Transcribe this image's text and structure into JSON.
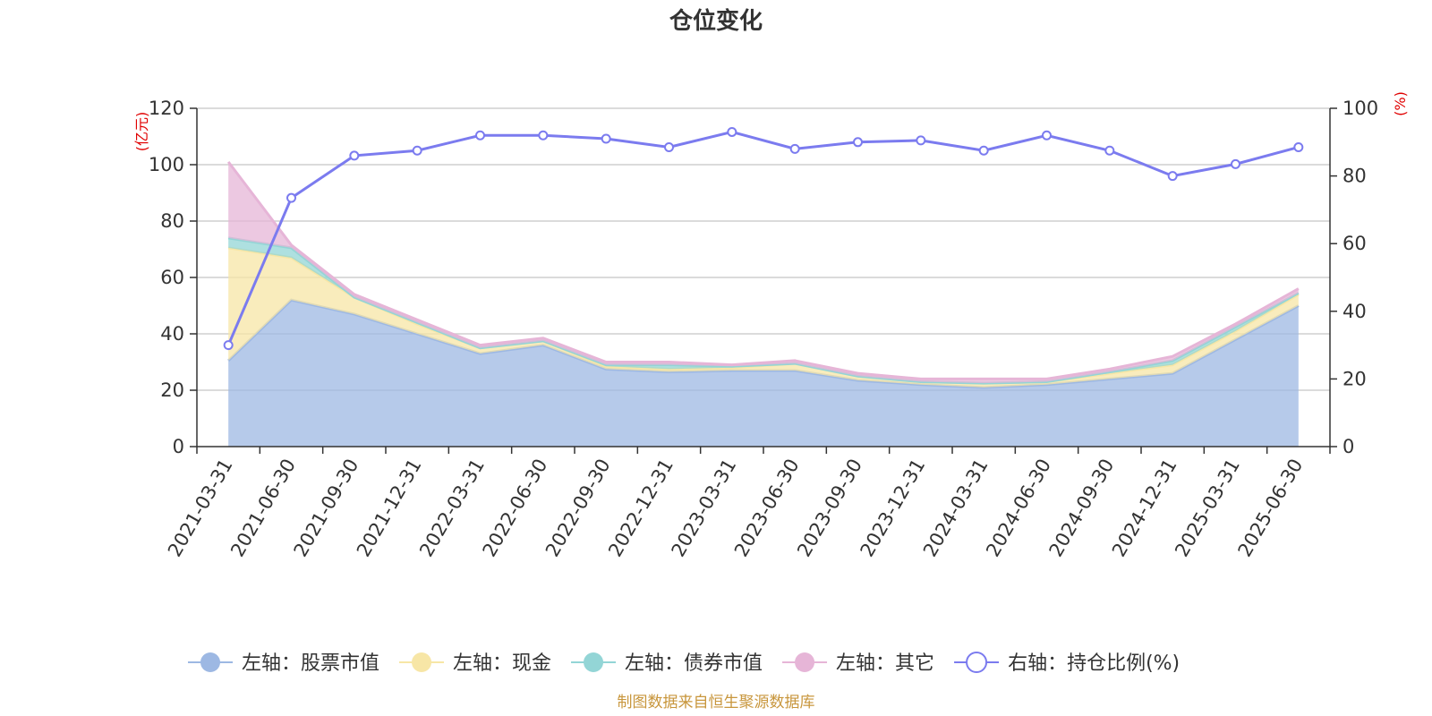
{
  "title": "仓位变化",
  "source": "制图数据来自恒生聚源数据库",
  "chart_data": {
    "type": "area",
    "title": "仓位变化",
    "x": [
      "2021-03-31",
      "2021-06-30",
      "2021-09-30",
      "2021-12-31",
      "2022-03-31",
      "2022-06-30",
      "2022-09-30",
      "2022-12-31",
      "2023-03-31",
      "2023-06-30",
      "2023-09-30",
      "2023-12-31",
      "2024-03-31",
      "2024-06-30",
      "2024-09-30",
      "2024-12-31",
      "2025-03-31",
      "2025-06-30"
    ],
    "left_axis": {
      "unit": "(亿元)",
      "ylim": [
        0,
        120
      ],
      "ticks": [
        0,
        20,
        40,
        60,
        80,
        100,
        120
      ]
    },
    "right_axis": {
      "unit": "(%)",
      "ylim": [
        0,
        100
      ],
      "ticks": [
        0,
        20,
        40,
        60,
        80,
        100
      ]
    },
    "stacked": true,
    "grid": true,
    "legend_position": "bottom",
    "series": [
      {
        "name": "左轴：股票市值",
        "axis": "left",
        "type": "area",
        "color": "#9db8e3",
        "values": [
          30.5,
          52,
          47,
          40,
          33,
          36,
          27.5,
          26.5,
          27,
          27,
          23.5,
          22,
          21,
          22,
          24,
          26,
          38,
          50
        ]
      },
      {
        "name": "左轴：现金",
        "axis": "left",
        "type": "area",
        "color": "#f7e6a6",
        "values": [
          40,
          15,
          6,
          3.5,
          2,
          1.5,
          1,
          1,
          1,
          2.5,
          1.5,
          1,
          1.5,
          1,
          2,
          3,
          3,
          4
        ]
      },
      {
        "name": "左轴：债券市值",
        "axis": "left",
        "type": "area",
        "color": "#93d5d6",
        "values": [
          3.5,
          3.5,
          0,
          0.5,
          0,
          0,
          0.5,
          1.5,
          0.5,
          0,
          0,
          0,
          0,
          0,
          0.5,
          1.5,
          1.5,
          0.5
        ]
      },
      {
        "name": "左轴：其它",
        "axis": "left",
        "type": "area",
        "color": "#e6b5d7",
        "values": [
          27,
          1,
          1,
          1,
          1,
          1,
          1,
          1,
          0.5,
          1,
          1,
          1,
          1.5,
          1,
          1,
          1.5,
          1,
          1.5
        ]
      },
      {
        "name": "右轴：持仓比例(%)",
        "axis": "right",
        "type": "line",
        "color": "#7b7bef",
        "values": [
          30,
          73.5,
          86,
          87.5,
          92,
          92,
          91,
          88.5,
          93,
          88,
          90,
          90.5,
          87.5,
          92,
          87.5,
          80,
          83.5,
          88.5
        ]
      }
    ]
  }
}
